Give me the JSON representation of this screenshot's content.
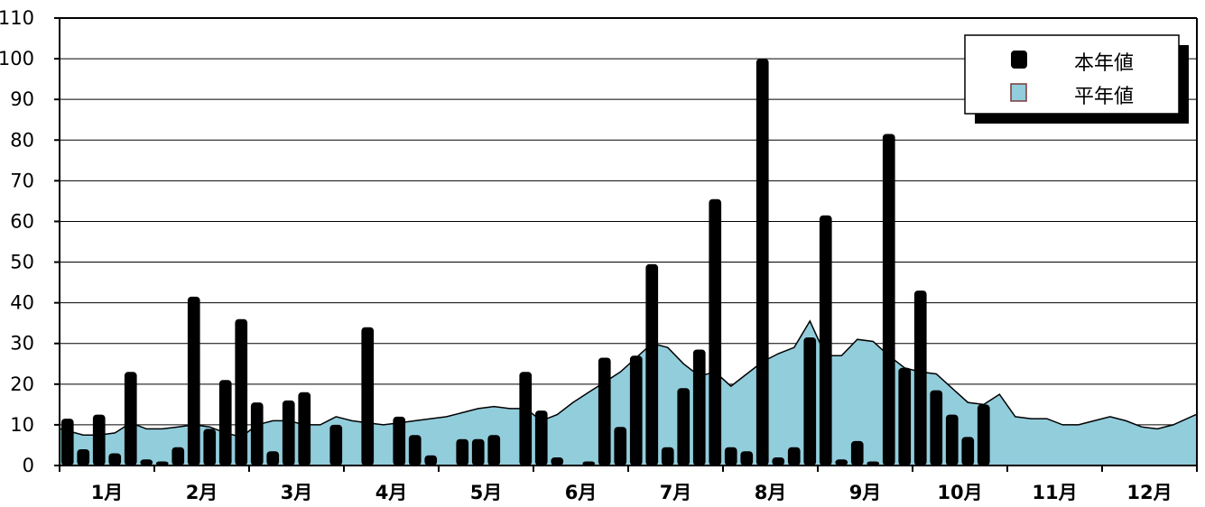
{
  "chart_data": {
    "type": "bar",
    "ylim": [
      0,
      110
    ],
    "y_ticks": [
      "0",
      "10",
      "20",
      "30",
      "40",
      "50",
      "60",
      "70",
      "80",
      "90",
      "100",
      "110"
    ],
    "grid": "horizontal",
    "legend_position": "top-right",
    "months": [
      "1月",
      "2月",
      "3月",
      "4月",
      "5月",
      "6月",
      "7月",
      "8月",
      "9月",
      "10月",
      "11月",
      "12月"
    ],
    "periods_per_month": 6,
    "series": [
      {
        "name": "本年値",
        "kind": "bar",
        "color": "#000000",
        "values": [
          11.5,
          4,
          12.5,
          3,
          23,
          1.5,
          1,
          4.5,
          41.5,
          9,
          21,
          36,
          15.5,
          3.5,
          16,
          18,
          0,
          10,
          0,
          34,
          0,
          12,
          7.5,
          2.5,
          0,
          6.5,
          6.5,
          7.5,
          0,
          23,
          13.5,
          2,
          0,
          1,
          26.5,
          9.5,
          27,
          49.5,
          4.5,
          19,
          28.5,
          65.5,
          4.5,
          3.5,
          100,
          2,
          4.5,
          31.5,
          61.5,
          1.5,
          6,
          1,
          81.5,
          24,
          43,
          18.5,
          12.5,
          7,
          15,
          0,
          0,
          0,
          0,
          0,
          0,
          0,
          0,
          0,
          0,
          0,
          0,
          0
        ]
      },
      {
        "name": "平年値",
        "kind": "area",
        "color": "#92CDDC",
        "values": [
          9,
          7.5,
          7.5,
          8,
          10.5,
          9,
          9,
          9.5,
          10,
          9.5,
          8,
          7,
          10,
          11,
          11,
          10,
          10,
          12,
          11,
          10.5,
          10,
          10.5,
          11,
          11.5,
          12,
          13,
          14,
          14.5,
          14,
          14,
          11,
          12.5,
          15.5,
          18,
          20.5,
          23,
          26.5,
          30,
          29,
          25,
          22,
          23,
          19.5,
          22.5,
          25.5,
          27.5,
          29,
          35.5,
          27,
          27,
          31,
          30.5,
          27,
          24,
          23,
          22.5,
          19,
          15.5,
          15,
          17.5,
          12,
          11.5,
          11.5,
          10,
          10,
          11,
          12,
          11,
          9.5,
          9,
          10,
          12.5
        ]
      }
    ]
  }
}
